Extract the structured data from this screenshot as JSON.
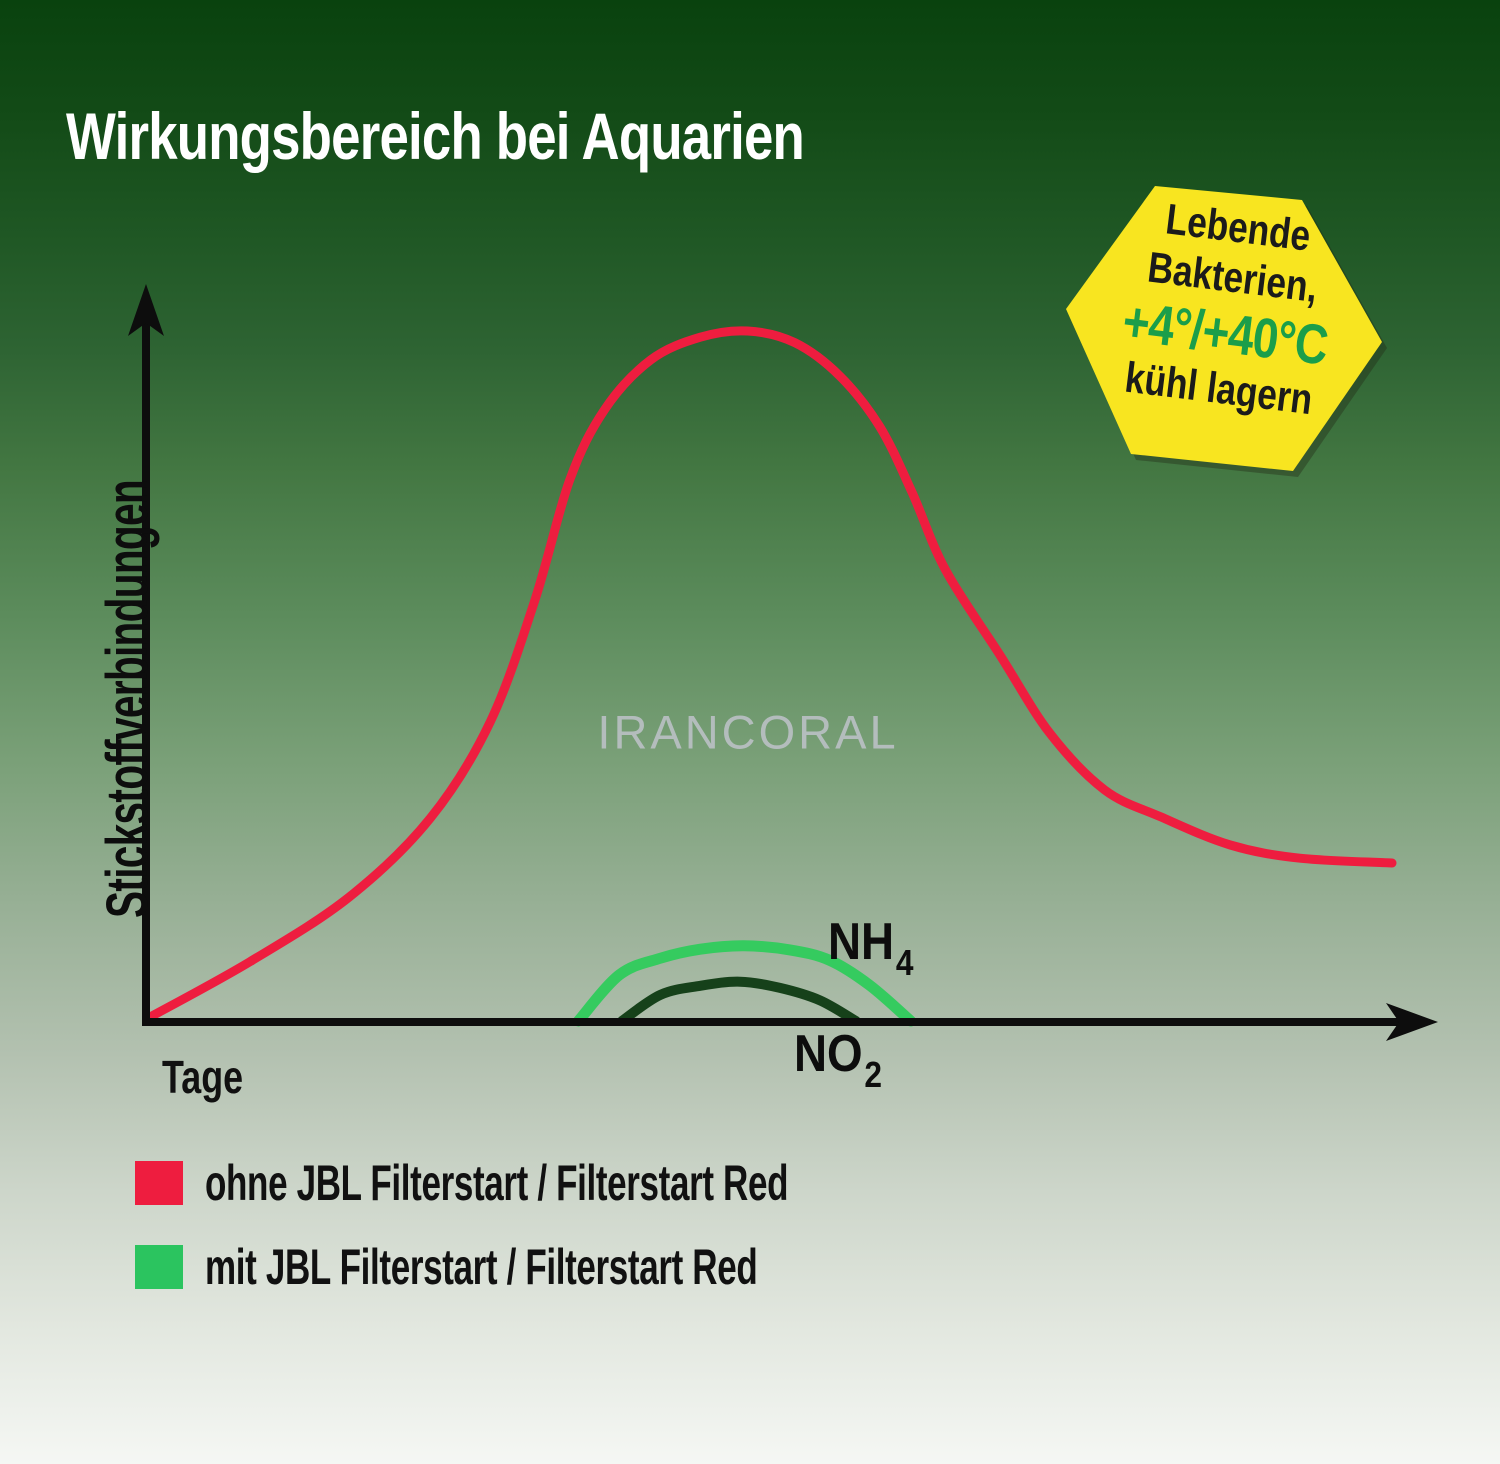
{
  "title": "Wirkungsbereich bei Aquarien",
  "badge": {
    "line1": "Lebende",
    "line2": "Bakterien,",
    "line3": "+4°/+40°C",
    "line4": "kühl lagern",
    "bg_color": "#f8e520",
    "temp_text_color": "#1b9e4a"
  },
  "watermark": "IRANCORAL",
  "axes": {
    "y_label": "Stickstoffverbindungen",
    "x_label": "Tage",
    "axis_color": "#0d0d0d"
  },
  "annotations": {
    "nh4_main": "NH",
    "nh4_sub": "4",
    "no2_main": "NO",
    "no2_sub": "2"
  },
  "legend": {
    "items": [
      {
        "label": "ohne JBL Filterstart / Filterstart Red",
        "color": "#ee1d3f"
      },
      {
        "label": "mit JBL Filterstart / Filterstart Red",
        "color": "#2bc45f"
      }
    ]
  },
  "chart_data": {
    "type": "line",
    "title": "Wirkungsbereich bei Aquarien",
    "xlabel": "Tage",
    "ylabel": "Stickstoffverbindungen",
    "grid": false,
    "axis_tick_labels": false,
    "legend_position": "bottom-left",
    "x_range_relative_days": [
      0,
      100
    ],
    "y_range_relative": [
      0,
      100
    ],
    "series": [
      {
        "name": "ohne JBL Filterstart / Filterstart Red",
        "color": "#ee1d3f",
        "width": 9,
        "x": [
          0,
          8.2,
          16.2,
          22.7,
          27.5,
          31.1,
          33.9,
          36.7,
          40.4,
          44.4,
          48.2,
          52.0,
          55.6,
          58.8,
          61.4,
          64.1,
          68.5,
          72.5,
          76.9,
          81.4,
          87.0,
          92.6,
          100
        ],
        "values": [
          0.4,
          8.6,
          18.0,
          29.4,
          43.3,
          61.0,
          78.4,
          88.6,
          95.8,
          99.1,
          100,
          98.3,
          93.5,
          86.2,
          76.7,
          65.4,
          53.0,
          41.7,
          33.5,
          29.6,
          25.5,
          23.6,
          22.9
        ]
      },
      {
        "name": "mit JBL Filterstart / Filterstart Red (NH4)",
        "color": "#35cb5f",
        "width": 11,
        "x": [
          34.6,
          37.9,
          41.2,
          44.4,
          47.9,
          51.6,
          54.8,
          58.0,
          61.3
        ],
        "values": [
          0,
          6.7,
          9.1,
          10.4,
          10.9,
          10.3,
          8.8,
          5.2,
          0
        ]
      },
      {
        "name": "mit JBL Filterstart / Filterstart Red (NO2)",
        "color": "#16411a",
        "width": 10,
        "x": [
          38.1,
          41.2,
          44.4,
          47.6,
          50.8,
          54.0,
          56.9
        ],
        "values": [
          0,
          3.8,
          5.1,
          5.7,
          4.8,
          3.0,
          0
        ]
      }
    ],
    "curve_annotations": [
      {
        "text": "NH4",
        "attached_to": "mit JBL Filterstart / Filterstart Red (NH4)"
      },
      {
        "text": "NO2",
        "attached_to": "mit JBL Filterstart / Filterstart Red (NO2)"
      }
    ]
  }
}
